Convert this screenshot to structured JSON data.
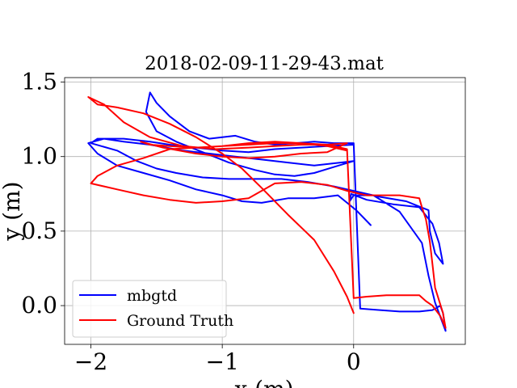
{
  "chart_data": {
    "type": "line",
    "title": "2018-02-09-11-29-43.mat",
    "xlabel": "x (m)",
    "ylabel": "y (m)",
    "xlim": [
      -2.2,
      0.85
    ],
    "ylim": [
      -0.26,
      1.53
    ],
    "x_ticks": [
      -2,
      -1,
      0
    ],
    "x_tick_labels": [
      "−2",
      "−1",
      "0"
    ],
    "y_ticks": [
      0.0,
      0.5,
      1.0,
      1.5
    ],
    "y_tick_labels": [
      "0.0",
      "0.5",
      "1.0",
      "1.5"
    ],
    "grid": true,
    "legend_position": "lower-left",
    "series": [
      {
        "name": "mbgtd",
        "color": "#0000ff",
        "x": [
          0.13,
          0.02,
          -0.12,
          -0.3,
          -0.5,
          -0.7,
          -0.85,
          -1.0,
          -1.2,
          -1.4,
          -1.6,
          -1.8,
          -1.95,
          -2.02,
          -1.9,
          -1.75,
          -1.55,
          -1.3,
          -1.1,
          -0.9,
          -0.7,
          -0.5,
          -0.3,
          -0.1,
          0.0,
          -0.15,
          -0.3,
          -0.45,
          -0.6,
          -0.75,
          -0.95,
          -1.15,
          -1.35,
          -1.5,
          -1.58,
          -1.55,
          -1.5,
          -1.4,
          -1.25,
          -1.1,
          -0.9,
          -0.75,
          -0.6,
          -0.45,
          -0.3,
          -0.15,
          0.0,
          0.05,
          0.2,
          0.35,
          0.5,
          0.6,
          0.66,
          0.68,
          0.7,
          0.62,
          0.57,
          0.52,
          0.35,
          0.15,
          0.0,
          -0.03,
          -0.02,
          0.1,
          0.3,
          0.5,
          0.6,
          0.65,
          0.68,
          0.62,
          0.58,
          0.57,
          0.4,
          0.2,
          0.05,
          -0.15,
          -0.35,
          -0.55,
          -0.75,
          -0.95,
          -1.15,
          -1.35,
          -1.5,
          -1.65,
          -1.8,
          -2.0,
          -1.95,
          -1.75,
          -1.55,
          -1.4,
          -1.2,
          -1.0,
          -0.8,
          -0.6,
          -0.4,
          -0.2,
          0.0
        ],
        "y": [
          0.54,
          0.64,
          0.74,
          0.72,
          0.72,
          0.69,
          0.7,
          0.74,
          0.78,
          0.84,
          0.89,
          0.94,
          1.02,
          1.09,
          1.12,
          1.1,
          1.08,
          1.04,
          1.02,
          1.0,
          0.98,
          0.96,
          0.94,
          0.96,
          0.97,
          0.93,
          0.89,
          0.87,
          0.88,
          0.91,
          0.96,
          1.03,
          1.1,
          1.17,
          1.3,
          1.43,
          1.36,
          1.27,
          1.17,
          1.12,
          1.14,
          1.1,
          1.08,
          1.09,
          1.1,
          1.09,
          1.09,
          -0.02,
          -0.03,
          -0.04,
          -0.04,
          -0.03,
          0.0,
          -0.05,
          -0.17,
          0.02,
          0.2,
          0.42,
          0.63,
          0.74,
          0.74,
          0.7,
          0.75,
          0.71,
          0.68,
          0.66,
          0.55,
          0.42,
          0.28,
          0.35,
          0.5,
          0.64,
          0.7,
          0.73,
          0.76,
          0.8,
          0.83,
          0.85,
          0.85,
          0.85,
          0.86,
          0.89,
          0.92,
          0.97,
          1.04,
          1.09,
          1.12,
          1.12,
          1.1,
          1.08,
          1.06,
          1.04,
          1.03,
          1.05,
          1.06,
          1.07,
          1.08
        ]
      },
      {
        "name": "Ground Truth",
        "color": "#ff0000",
        "x": [
          0.0,
          -0.05,
          -0.15,
          -0.3,
          -0.5,
          -0.7,
          -0.85,
          -1.0,
          -1.2,
          -1.4,
          -1.6,
          -1.8,
          -1.95,
          -2.02,
          -1.9,
          -1.75,
          -1.55,
          -1.3,
          -1.05,
          -0.8,
          -0.6,
          -0.4,
          -0.2,
          -0.05,
          -0.2,
          -0.4,
          -0.6,
          -0.8,
          -1.0,
          -1.2,
          -1.45,
          -1.62,
          -1.55,
          -1.4,
          -1.2,
          -1.0,
          -0.8,
          -0.6,
          -0.4,
          -0.2,
          -0.05,
          0.0,
          0.1,
          0.25,
          0.4,
          0.5,
          0.55,
          0.6,
          0.66,
          0.7,
          0.68,
          0.62,
          0.6,
          0.58,
          0.55,
          0.52,
          0.5,
          0.35,
          0.2,
          0.1,
          -0.05,
          -0.2,
          -0.4,
          -0.6,
          -0.8,
          -1.0,
          -1.2,
          -1.4,
          -1.6,
          -1.8,
          -2.0,
          -1.95,
          -1.8,
          -1.6,
          -1.4,
          -1.2,
          -1.0,
          -0.8,
          -0.6,
          -0.4,
          -0.2,
          -0.05
        ],
        "y": [
          -0.05,
          0.06,
          0.23,
          0.44,
          0.61,
          0.79,
          0.92,
          1.02,
          1.13,
          1.22,
          1.29,
          1.33,
          1.35,
          1.4,
          1.35,
          1.23,
          1.13,
          1.07,
          1.05,
          1.06,
          1.07,
          1.08,
          1.08,
          1.09,
          1.03,
          1.02,
          1.0,
          0.99,
          1.0,
          1.02,
          1.06,
          1.1,
          1.08,
          1.07,
          1.06,
          1.07,
          1.08,
          1.09,
          1.09,
          1.08,
          1.05,
          0.05,
          0.06,
          0.07,
          0.07,
          0.07,
          0.03,
          0.0,
          -0.07,
          -0.15,
          -0.05,
          0.12,
          0.28,
          0.43,
          0.58,
          0.66,
          0.72,
          0.74,
          0.74,
          0.74,
          0.77,
          0.81,
          0.83,
          0.82,
          0.72,
          0.7,
          0.69,
          0.71,
          0.74,
          0.78,
          0.82,
          0.87,
          0.94,
          0.99,
          1.05,
          1.06,
          1.07,
          1.09,
          1.1,
          1.09,
          1.07,
          1.04
        ]
      }
    ]
  }
}
